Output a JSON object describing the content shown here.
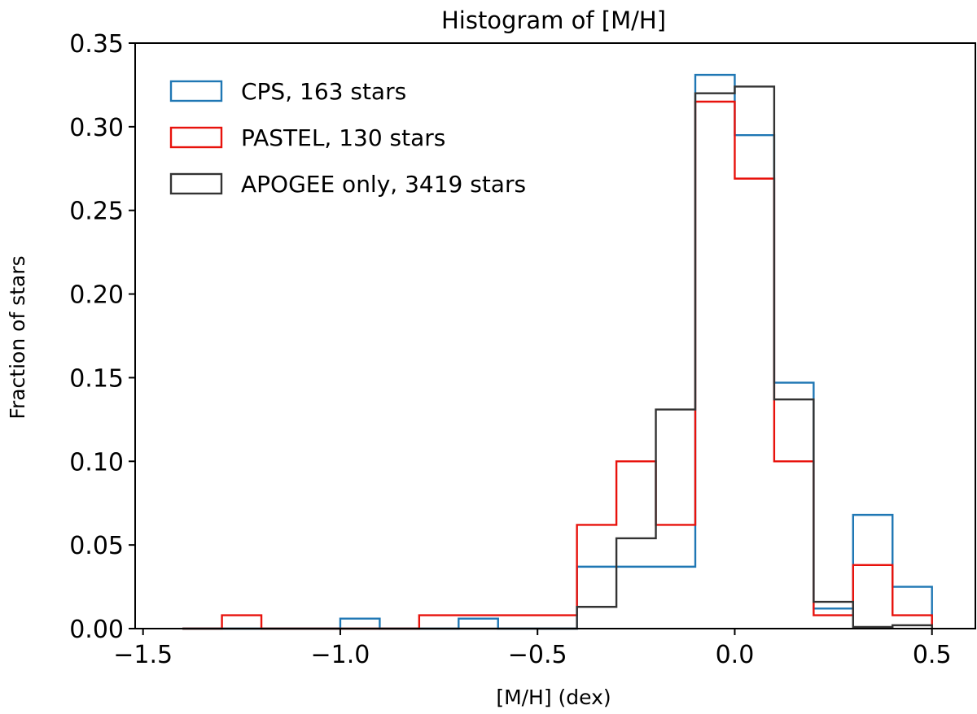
{
  "chart_data": {
    "type": "histogram",
    "title": "Histogram of [M/H]",
    "xlabel": "[M/H] (dex)",
    "ylabel": "Fraction of stars",
    "xlim": [
      -1.52,
      0.61
    ],
    "ylim": [
      0,
      0.35
    ],
    "bin_edges": [
      -1.4,
      -1.3,
      -1.2,
      -1.1,
      -1.0,
      -0.9,
      -0.8,
      -0.7,
      -0.6,
      -0.5,
      -0.4,
      -0.3,
      -0.2,
      -0.1,
      0.0,
      0.1,
      0.2,
      0.3,
      0.4,
      0.5
    ],
    "xticks": [
      -1.5,
      -1.0,
      -0.5,
      0.0,
      0.5
    ],
    "xtick_labels": [
      "−1.5",
      "−1.0",
      "−0.5",
      "0.0",
      "0.5"
    ],
    "yticks": [
      0.0,
      0.05,
      0.1,
      0.15,
      0.2,
      0.25,
      0.3,
      0.35
    ],
    "ytick_labels": [
      "0.00",
      "0.05",
      "0.10",
      "0.15",
      "0.20",
      "0.25",
      "0.30",
      "0.35"
    ],
    "legend_position": "top-left",
    "series": [
      {
        "name": "CPS, 163 stars",
        "color": "#1f77b4",
        "values": [
          0,
          0,
          0,
          0,
          0.006,
          0,
          0,
          0.006,
          0,
          0,
          0.037,
          0.037,
          0.037,
          0.331,
          0.295,
          0.147,
          0.012,
          0.068,
          0.025
        ]
      },
      {
        "name": "PASTEL, 130 stars",
        "color": "#e8120c",
        "values": [
          0,
          0.008,
          0,
          0,
          0,
          0,
          0.008,
          0.008,
          0.008,
          0.008,
          0.062,
          0.1,
          0.062,
          0.315,
          0.269,
          0.1,
          0.008,
          0.038,
          0.008
        ]
      },
      {
        "name": "APOGEE only, 3419 stars",
        "color": "#333333",
        "values": [
          0,
          0,
          0,
          0,
          0,
          0,
          0,
          0,
          0,
          0,
          0.013,
          0.054,
          0.131,
          0.32,
          0.324,
          0.137,
          0.016,
          0.001,
          0.002
        ]
      }
    ]
  }
}
